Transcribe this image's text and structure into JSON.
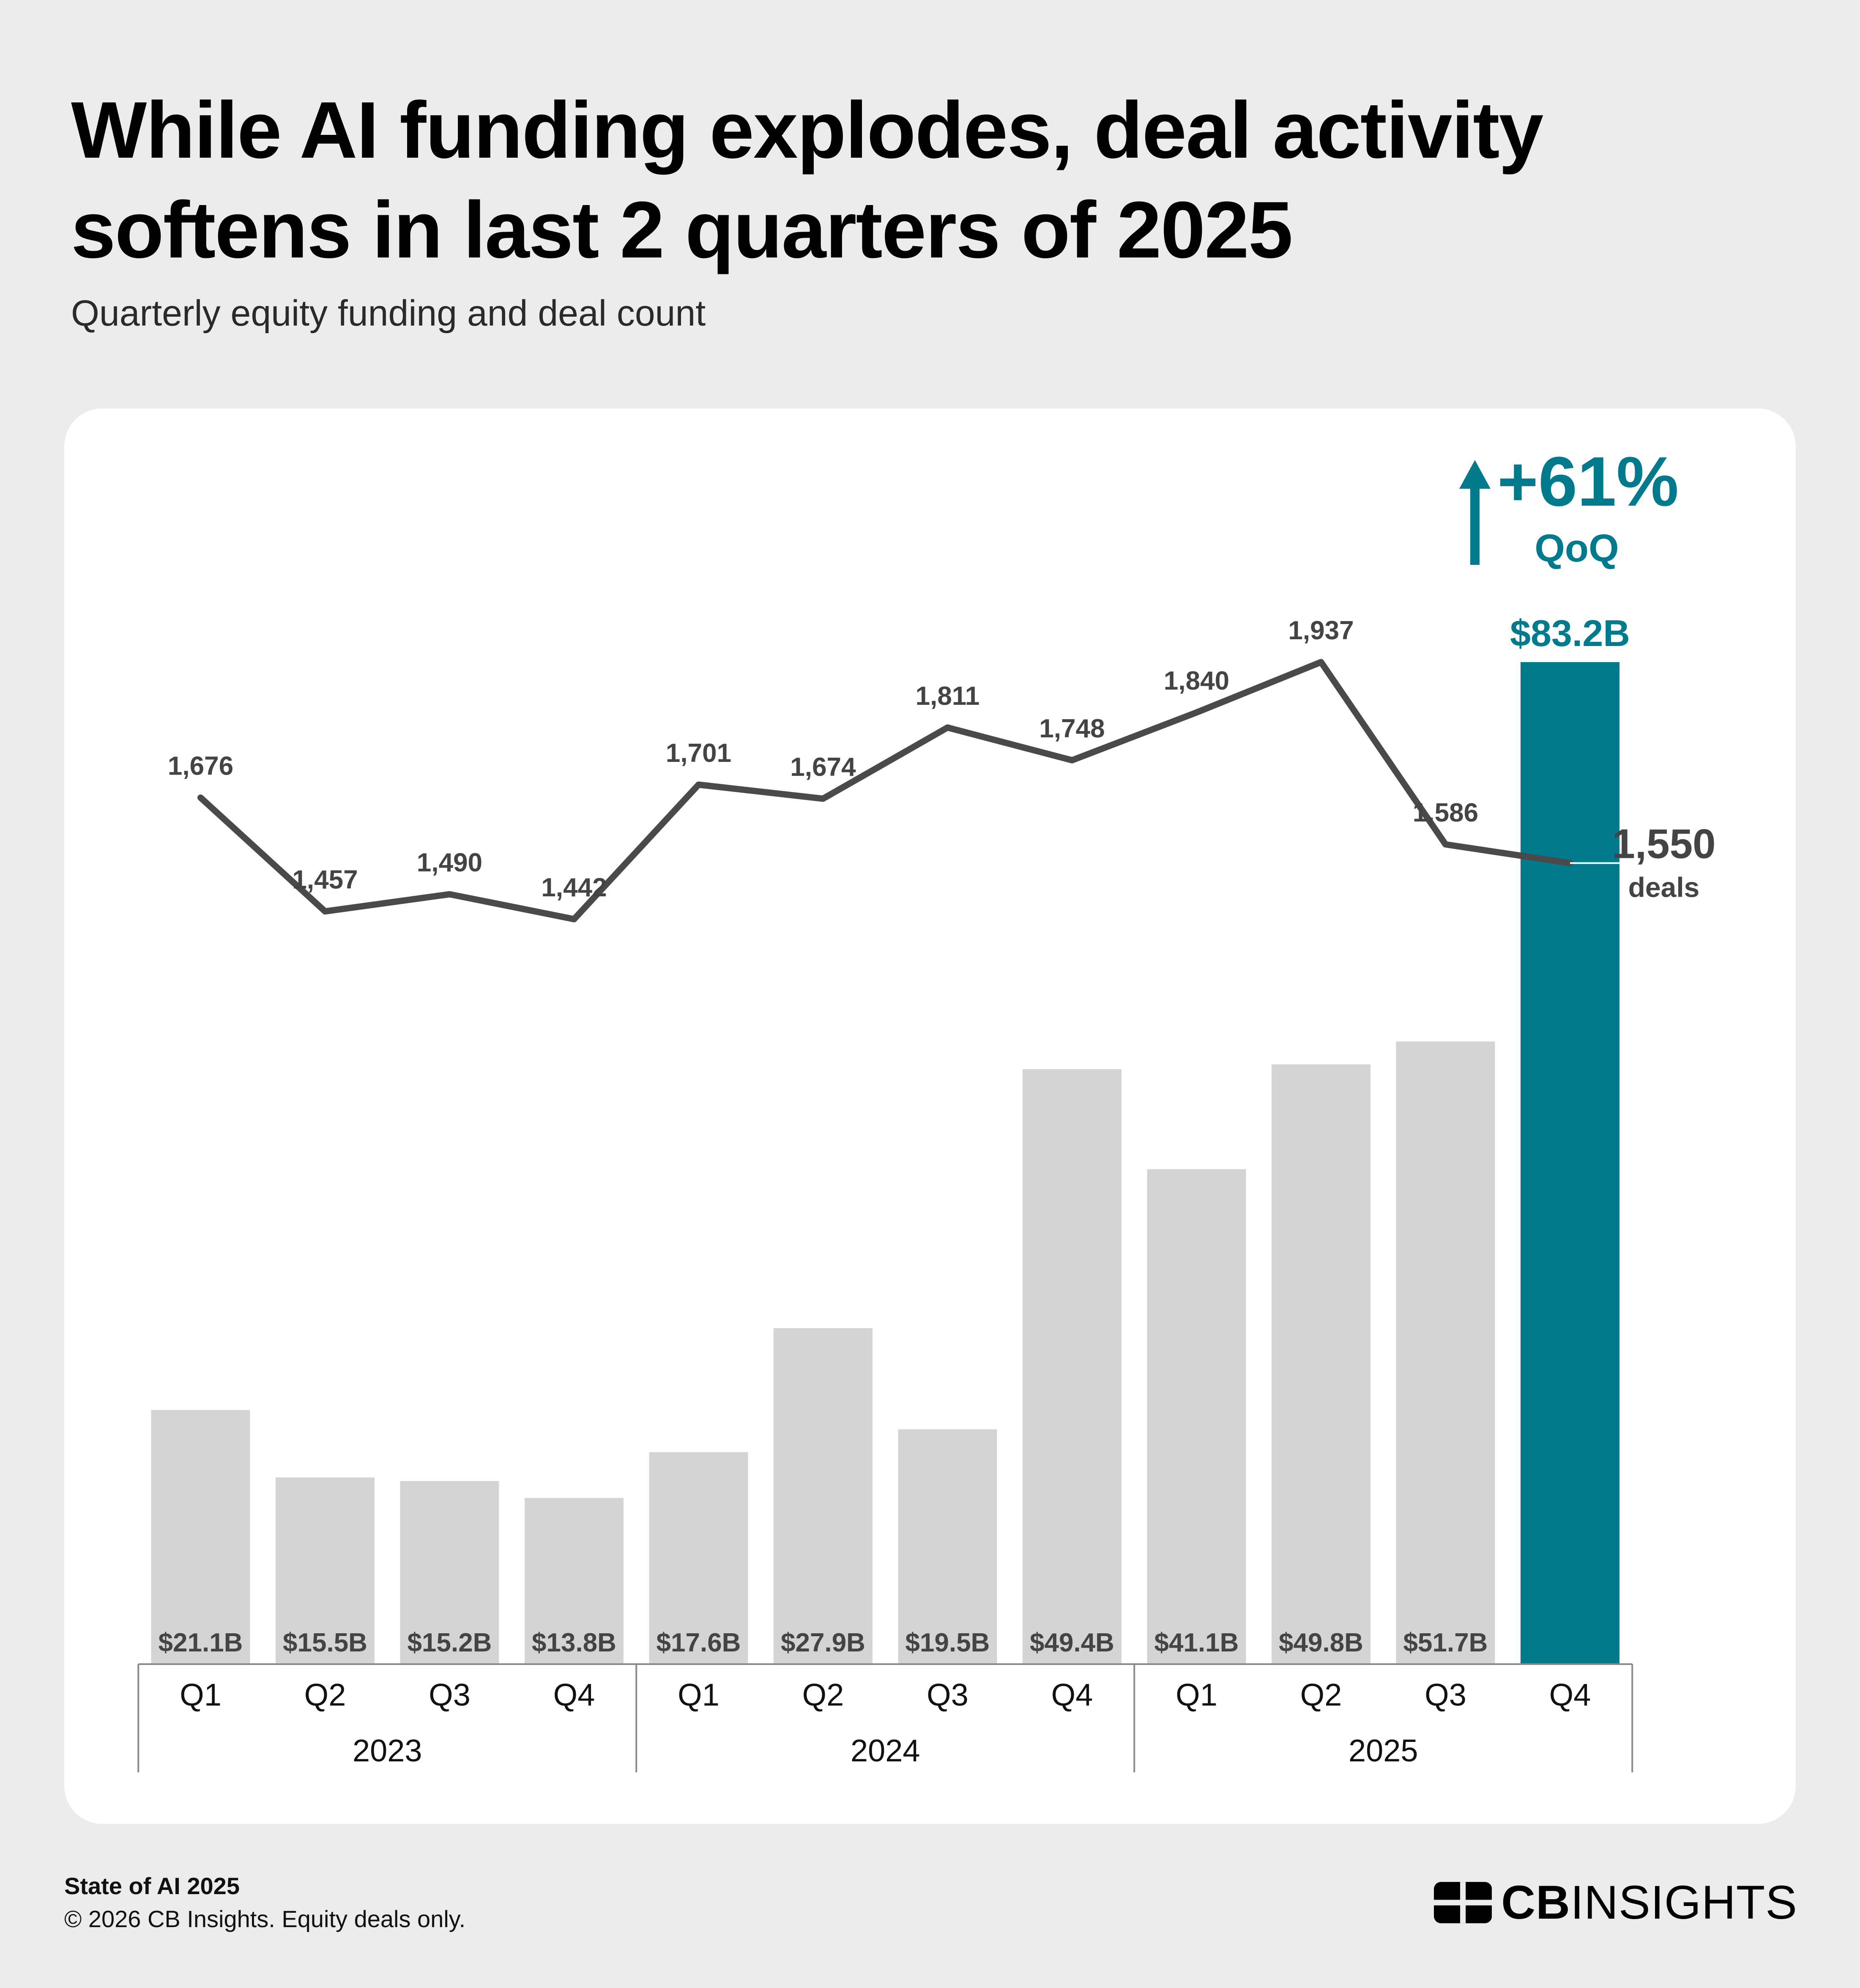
{
  "header": {
    "title_line1": "While AI funding explodes, deal activity",
    "title_line2": "softens in last 2 quarters of 2025",
    "subtitle": "Quarterly equity funding and deal count"
  },
  "colors": {
    "background": "#ececec",
    "card": "#ffffff",
    "bar_default": "#d4d4d4",
    "bar_highlight": "#007a8c",
    "line": "#4a4a4a",
    "label": "#444444"
  },
  "chart_data": {
    "type": "bar",
    "title": "Quarterly equity funding and deal count",
    "categories": [
      "Q1",
      "Q2",
      "Q3",
      "Q4",
      "Q1",
      "Q2",
      "Q3",
      "Q4",
      "Q1",
      "Q2",
      "Q3",
      "Q4"
    ],
    "groups": [
      {
        "label": "2023",
        "count": 4
      },
      {
        "label": "2024",
        "count": 4
      },
      {
        "label": "2025",
        "count": 4
      }
    ],
    "series": [
      {
        "name": "Equity funding ($B)",
        "kind": "bar",
        "values": [
          21.1,
          15.5,
          15.2,
          13.8,
          17.6,
          27.9,
          19.5,
          49.4,
          41.1,
          49.8,
          51.7,
          83.2
        ],
        "labels": [
          "$21.1B",
          "$15.5B",
          "$15.2B",
          "$13.8B",
          "$17.6B",
          "$27.9B",
          "$19.5B",
          "$49.4B",
          "$41.1B",
          "$49.8B",
          "$51.7B",
          "$83.2B"
        ],
        "highlight_index": 11
      },
      {
        "name": "Deal count",
        "kind": "line",
        "values": [
          1676,
          1457,
          1490,
          1442,
          1701,
          1674,
          1811,
          1748,
          1840,
          1937,
          1586,
          1550
        ],
        "labels": [
          "1,676",
          "1,457",
          "1,490",
          "1,442",
          "1,701",
          "1,674",
          "1,811",
          "1,748",
          "1,840",
          "1,937",
          "1,586",
          "1,550"
        ]
      }
    ],
    "annotations": {
      "change_value": "+61%",
      "change_period": "QoQ",
      "last_deals_value": "1,550",
      "last_deals_unit": "deals"
    },
    "xlabel": "",
    "ylabel": "",
    "ylim_bar": [
      0,
      83.2
    ],
    "ylim_line": [
      1442,
      1937
    ],
    "legend": "none"
  },
  "footer": {
    "report": "State of AI 2025",
    "copyright": "© 2026 CB Insights. Equity deals only.",
    "logo_bold": "CB",
    "logo_light": "INSIGHTS"
  }
}
